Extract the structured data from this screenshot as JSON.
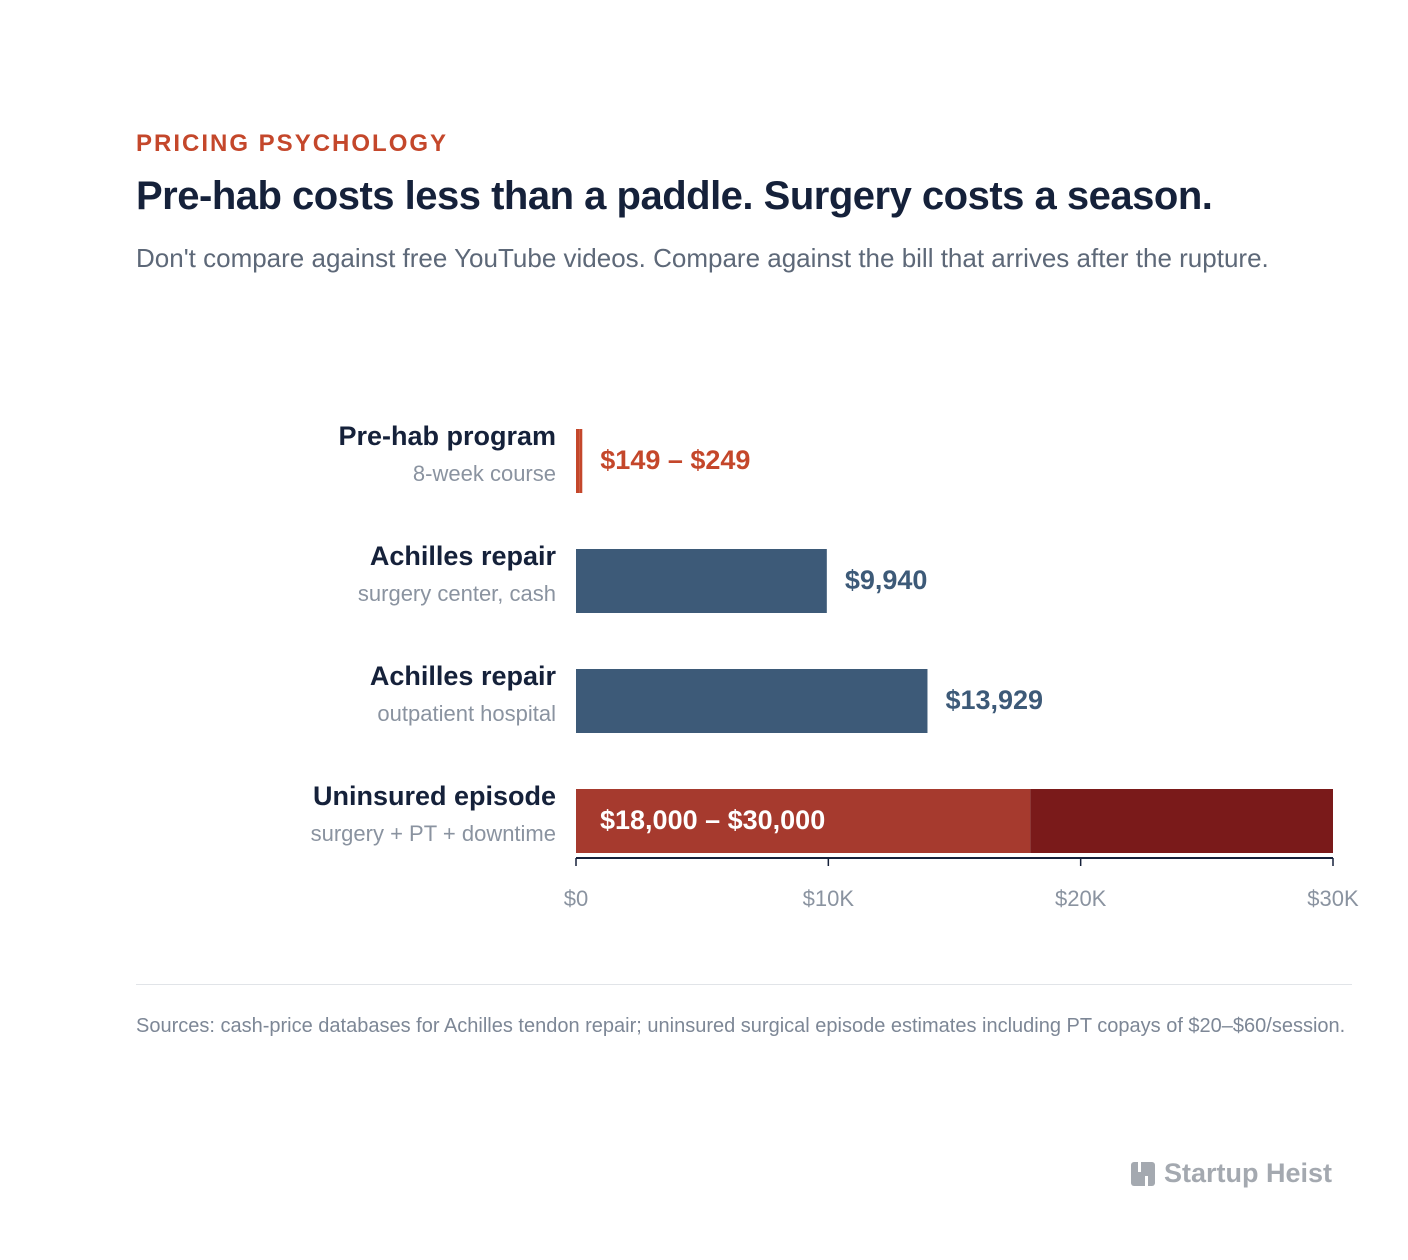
{
  "chart_data": {
    "type": "range-bar",
    "kicker": "PRICING PSYCHOLOGY",
    "title": "Pre-hab costs less than a paddle. Surgery costs a season.",
    "subtitle": "Don't compare against free YouTube videos. Compare against the bill that arrives after the rupture.",
    "rows": [
      {
        "label": "Pre-hab program",
        "sublabel": "8-week course",
        "values": [
          149,
          249
        ],
        "value_label": "$149 – $249",
        "colors": [
          "#c4472b",
          "#c4472b"
        ],
        "label_color": "#c4472b"
      },
      {
        "label": "Achilles repair",
        "sublabel": "surgery center, cash",
        "values": [
          9940
        ],
        "value_label": "$9,940",
        "colors": [
          "#3d5a78"
        ],
        "label_color": "#3d5a78"
      },
      {
        "label": "Achilles repair",
        "sublabel": "outpatient hospital",
        "values": [
          13929
        ],
        "value_label": "$13,929",
        "colors": [
          "#3d5a78"
        ],
        "label_color": "#3d5a78"
      },
      {
        "label": "Uninsured episode",
        "sublabel": "surgery + PT + downtime",
        "values": [
          18000,
          30000
        ],
        "value_label": "$18,000 – $30,000",
        "colors": [
          "#a63a2e",
          "#7a1a1a"
        ],
        "label_color": "#ffffff"
      }
    ],
    "xlim": [
      0,
      30000
    ],
    "xticks": [
      {
        "value": 0,
        "label": "$0"
      },
      {
        "value": 10000,
        "label": "$10K"
      },
      {
        "value": 20000,
        "label": "$20K"
      },
      {
        "value": 30000,
        "label": "$30K"
      }
    ],
    "sources": "Sources: cash-price databases for Achilles tendon repair; uninsured surgical episode estimates including PT copays of $20–$60/session.",
    "brand": "Startup Heist"
  }
}
